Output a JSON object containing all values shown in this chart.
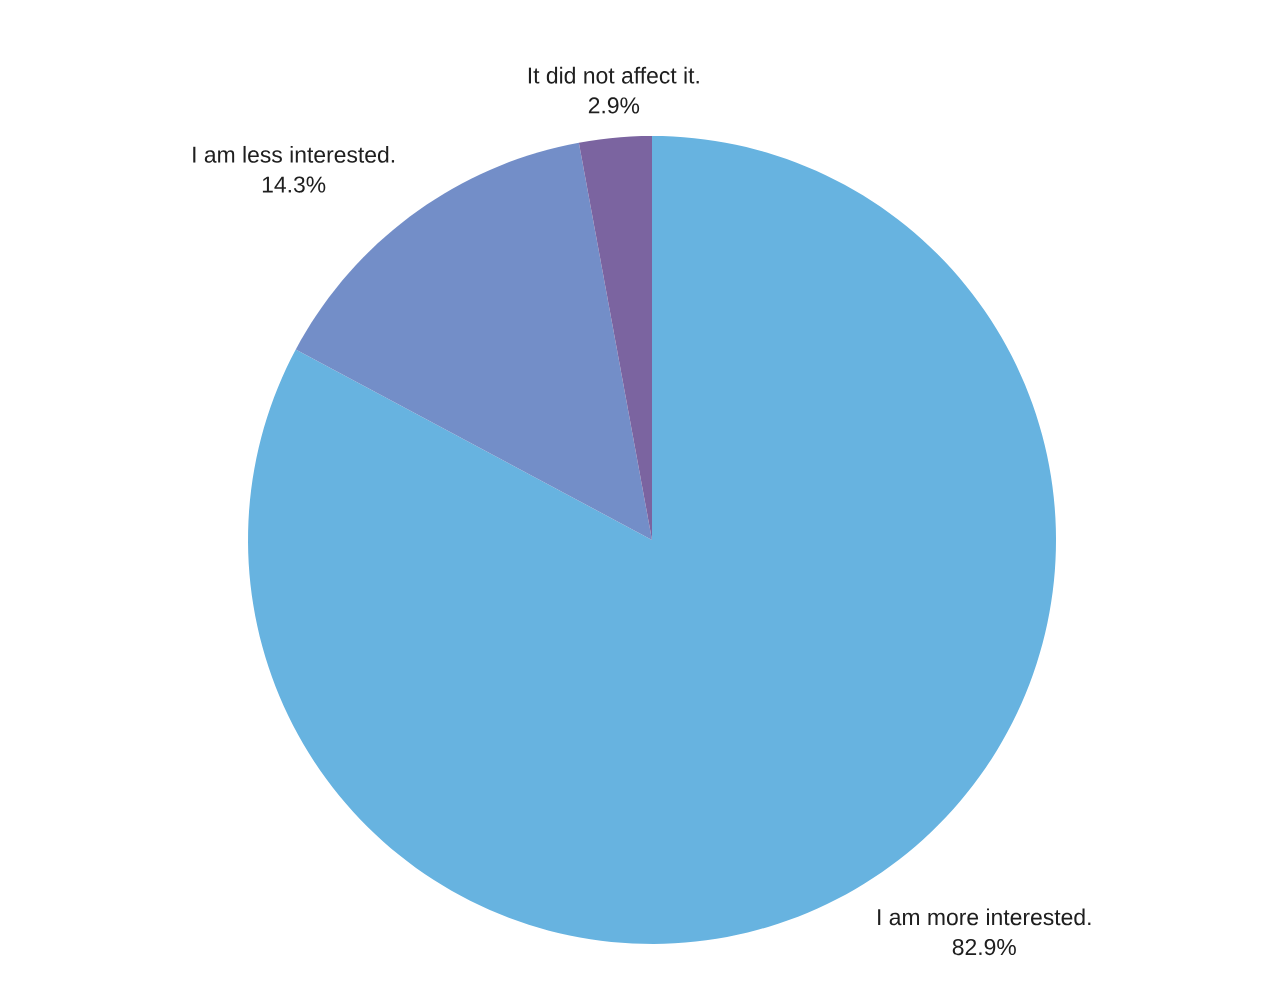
{
  "chart_data": {
    "type": "pie",
    "categories": [
      "I am more interested.",
      "I am less interested.",
      "It did not affect it."
    ],
    "values": [
      82.9,
      14.3,
      2.9
    ],
    "value_labels": [
      "82.9%",
      "14.3%",
      "2.9%"
    ],
    "colors": [
      "#67b3e0",
      "#738ec8",
      "#7b64a0"
    ]
  }
}
